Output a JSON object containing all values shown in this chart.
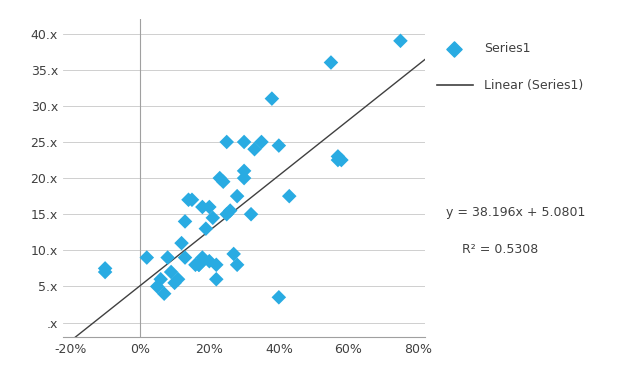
{
  "scatter_x": [
    -0.1,
    -0.1,
    0.02,
    0.05,
    0.06,
    0.07,
    0.08,
    0.09,
    0.1,
    0.11,
    0.12,
    0.13,
    0.13,
    0.14,
    0.15,
    0.16,
    0.17,
    0.17,
    0.18,
    0.18,
    0.19,
    0.2,
    0.2,
    0.21,
    0.22,
    0.22,
    0.23,
    0.24,
    0.25,
    0.25,
    0.26,
    0.27,
    0.28,
    0.28,
    0.3,
    0.3,
    0.3,
    0.32,
    0.33,
    0.35,
    0.38,
    0.4,
    0.4,
    0.43,
    0.55,
    0.57,
    0.57,
    0.58,
    0.75
  ],
  "scatter_y": [
    7.5,
    7.0,
    9.0,
    5.0,
    6.0,
    4.0,
    9.0,
    7.0,
    5.5,
    6.0,
    11.0,
    9.0,
    14.0,
    17.0,
    17.0,
    8.0,
    8.0,
    8.0,
    16.0,
    9.0,
    13.0,
    16.0,
    8.5,
    14.5,
    6.0,
    8.0,
    20.0,
    19.5,
    25.0,
    15.0,
    15.5,
    9.5,
    8.0,
    17.5,
    21.0,
    20.0,
    25.0,
    15.0,
    24.0,
    25.0,
    31.0,
    24.5,
    3.5,
    17.5,
    36.0,
    22.5,
    23.0,
    22.5,
    39.0
  ],
  "slope": 38.196,
  "intercept": 5.0801,
  "r_squared": 0.5308,
  "marker_color": "#29ABE2",
  "line_color": "#404040",
  "background_color": "#FFFFFF",
  "grid_color": "#C8C8C8",
  "xlim": [
    -0.22,
    0.82
  ],
  "ylim": [
    -2,
    42
  ],
  "xticks": [
    -0.2,
    0.0,
    0.2,
    0.4,
    0.6,
    0.8
  ],
  "yticks": [
    0,
    5,
    10,
    15,
    20,
    25,
    30,
    35,
    40
  ],
  "ytick_labels": [
    ".x",
    "5.x",
    "10.x",
    "15.x",
    "20.x",
    "25.x",
    "30.x",
    "35.x",
    "40.x"
  ],
  "xtick_labels": [
    "-20%",
    "0%",
    "20%",
    "40%",
    "60%",
    "80%"
  ],
  "legend_series": "Series1",
  "legend_linear": "Linear (Series1)",
  "eq_text": "y = 38.196x + 5.0801",
  "r2_text": "R² = 0.5308",
  "marker_size": 55,
  "figsize": [
    6.34,
    3.83
  ],
  "dpi": 100
}
